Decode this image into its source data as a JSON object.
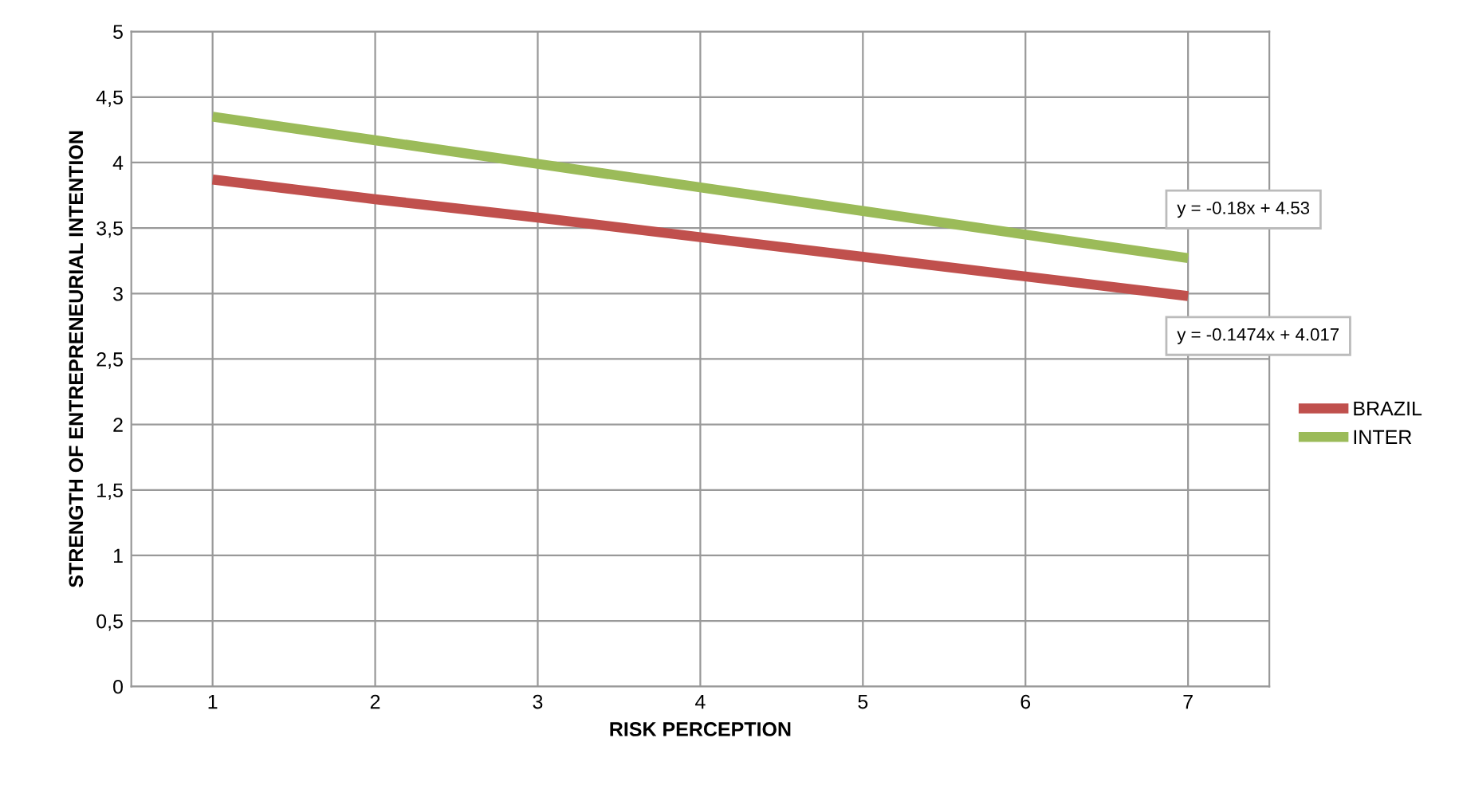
{
  "chart_data": {
    "type": "line",
    "xlabel": "RISK PERCEPTION",
    "ylabel": "STRENGTH OF ENTREPRENEURIAL INTENTION",
    "x": [
      1,
      2,
      3,
      4,
      5,
      6,
      7
    ],
    "series": [
      {
        "name": "BRAZIL",
        "color": "#c0504d",
        "values": [
          3.87,
          3.72,
          3.58,
          3.43,
          3.28,
          3.13,
          2.98
        ]
      },
      {
        "name": "INTER",
        "color": "#9bbb59",
        "values": [
          4.35,
          4.17,
          3.99,
          3.81,
          3.63,
          3.45,
          3.27
        ]
      }
    ],
    "xlim": [
      0.5,
      7.5
    ],
    "xticks": [
      1,
      2,
      3,
      4,
      5,
      6,
      7
    ],
    "ylim": [
      0,
      5
    ],
    "yticks": [
      {
        "value": 0,
        "label": "0"
      },
      {
        "value": 0.5,
        "label": "0,5"
      },
      {
        "value": 1,
        "label": "1"
      },
      {
        "value": 1.5,
        "label": "1,5"
      },
      {
        "value": 2,
        "label": "2"
      },
      {
        "value": 2.5,
        "label": "2,5"
      },
      {
        "value": 3,
        "label": "3"
      },
      {
        "value": 3.5,
        "label": "3,5"
      },
      {
        "value": 4,
        "label": "4"
      },
      {
        "value": 4.5,
        "label": "4,5"
      },
      {
        "value": 5,
        "label": "5"
      }
    ],
    "grid": true,
    "legend": "right",
    "marker": "none",
    "line_style": "solid",
    "annotations": [
      {
        "text": "y = -0.18x + 4.53",
        "x": 7,
        "y": 3.27
      },
      {
        "text": "y = -0.1474x + 4.017",
        "x": 7,
        "y": 2.98
      }
    ]
  }
}
